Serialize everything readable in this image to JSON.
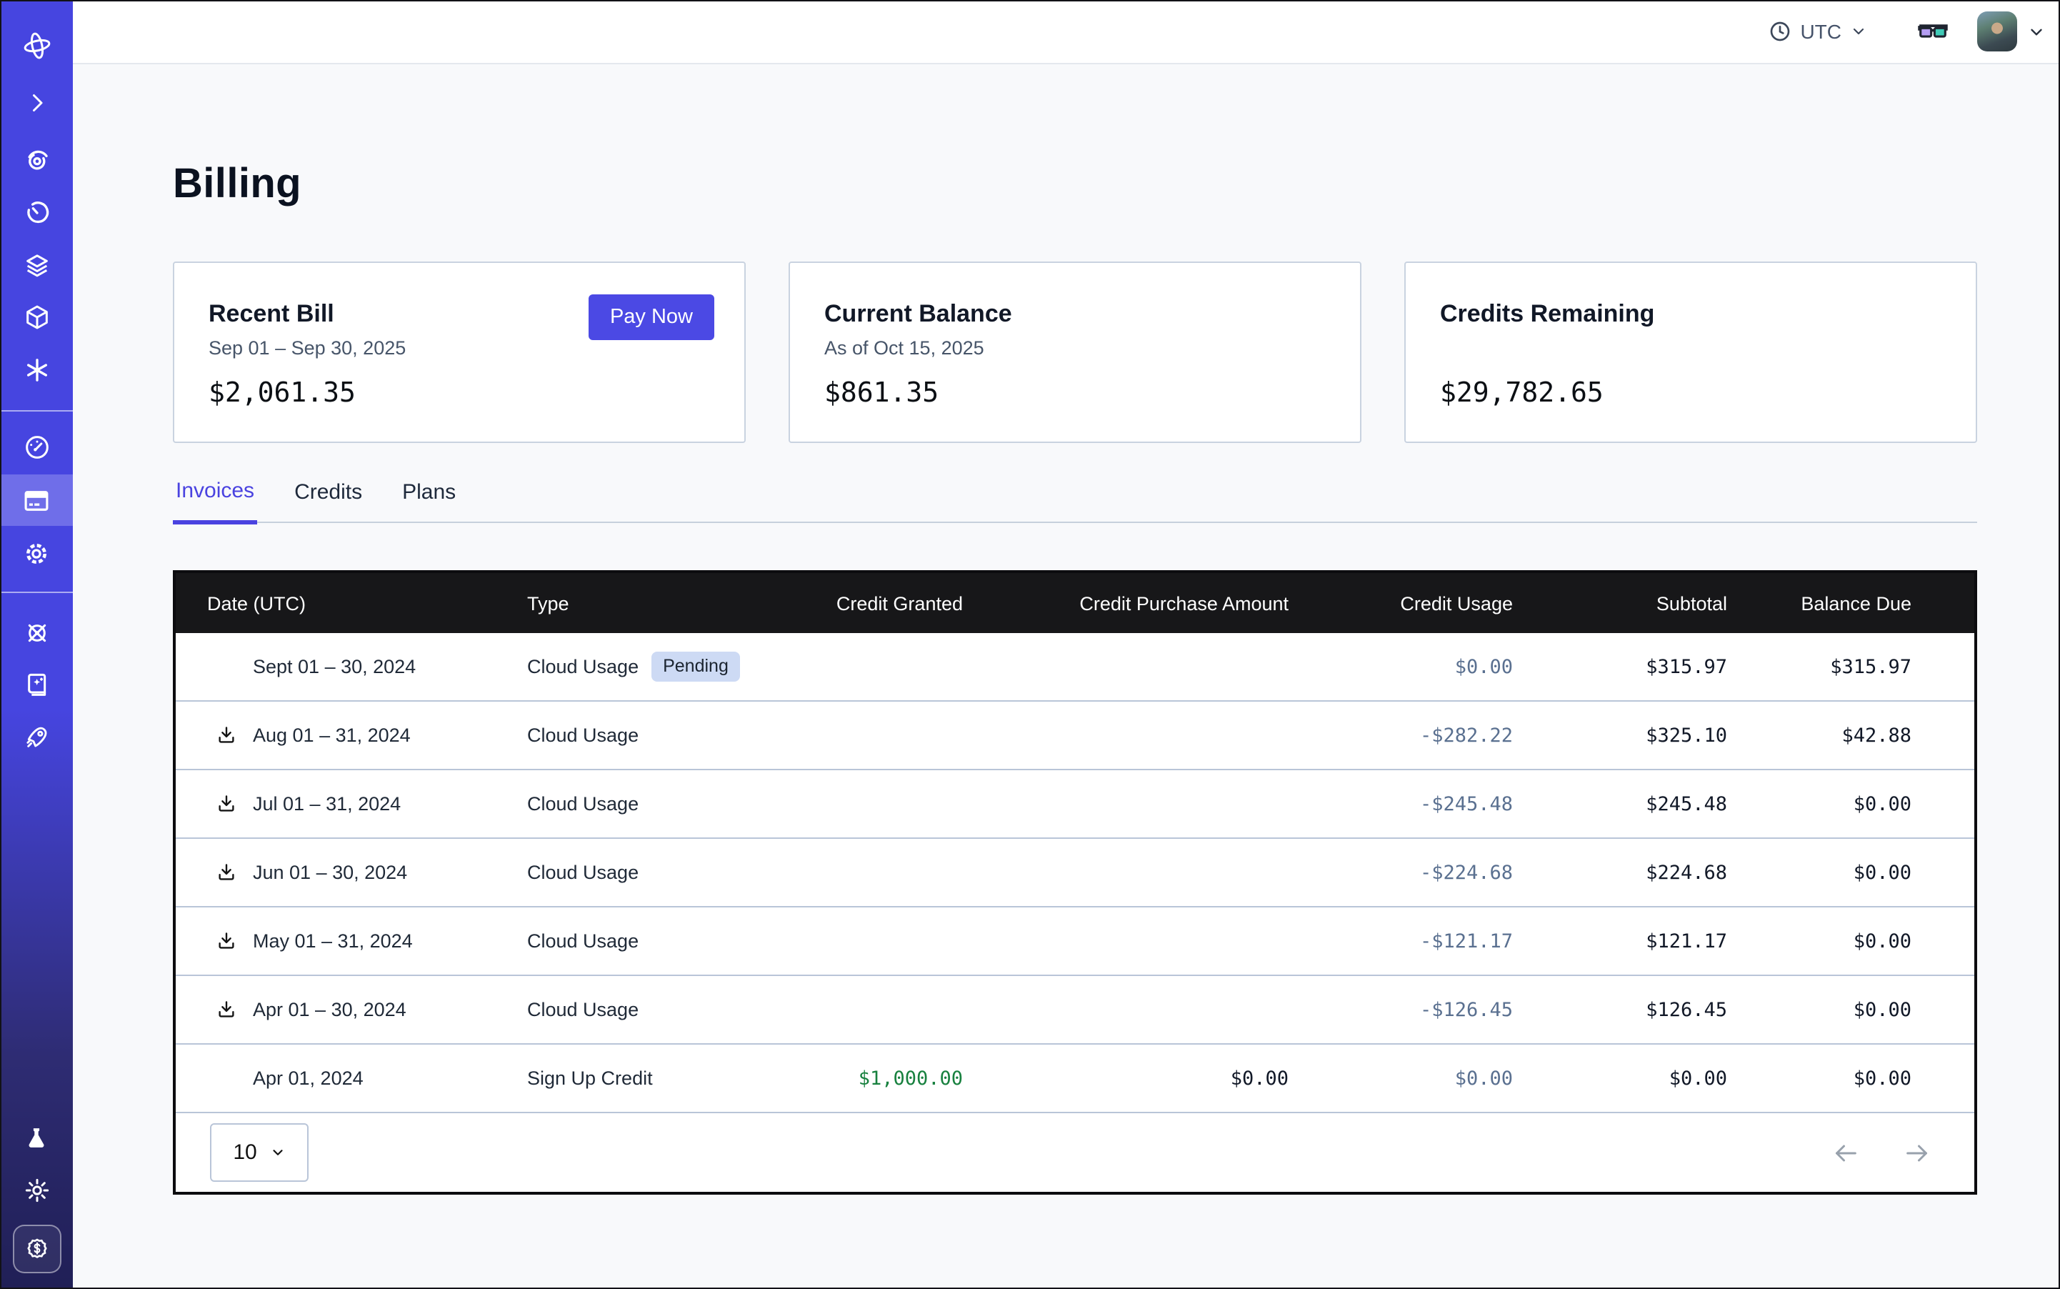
{
  "topbar": {
    "timezone_label": "UTC",
    "icons": [
      "clock-icon",
      "chevron-down-icon",
      "3d-glasses-icon",
      "avatar",
      "chevron-down-icon"
    ]
  },
  "page": {
    "title": "Billing"
  },
  "cards": [
    {
      "title": "Recent Bill",
      "subtitle": "Sep 01 – Sep 30, 2025",
      "amount": "$2,061.35",
      "action_label": "Pay Now"
    },
    {
      "title": "Current Balance",
      "subtitle": "As of Oct 15, 2025",
      "amount": "$861.35"
    },
    {
      "title": "Credits Remaining",
      "subtitle": "",
      "amount": "$29,782.65"
    }
  ],
  "tabs": [
    {
      "label": "Invoices",
      "active": true
    },
    {
      "label": "Credits",
      "active": false
    },
    {
      "label": "Plans",
      "active": false
    }
  ],
  "table": {
    "columns": [
      "Date (UTC)",
      "Type",
      "Credit Granted",
      "Credit Purchase Amount",
      "Credit Usage",
      "Subtotal",
      "Balance Due"
    ],
    "rows": [
      {
        "date": "Sept 01 – 30, 2024",
        "has_download": false,
        "type": "Cloud Usage",
        "badge": "Pending",
        "credit_granted": "",
        "credit_purchase": "",
        "credit_usage": "$0.00",
        "subtotal": "$315.97",
        "balance_due": "$315.97"
      },
      {
        "date": "Aug 01 – 31, 2024",
        "has_download": true,
        "type": "Cloud Usage",
        "badge": "",
        "credit_granted": "",
        "credit_purchase": "",
        "credit_usage": "-$282.22",
        "subtotal": "$325.10",
        "balance_due": "$42.88"
      },
      {
        "date": "Jul 01 – 31, 2024",
        "has_download": true,
        "type": "Cloud Usage",
        "badge": "",
        "credit_granted": "",
        "credit_purchase": "",
        "credit_usage": "-$245.48",
        "subtotal": "$245.48",
        "balance_due": "$0.00"
      },
      {
        "date": "Jun 01 – 30, 2024",
        "has_download": true,
        "type": "Cloud Usage",
        "badge": "",
        "credit_granted": "",
        "credit_purchase": "",
        "credit_usage": "-$224.68",
        "subtotal": "$224.68",
        "balance_due": "$0.00"
      },
      {
        "date": "May 01 – 31, 2024",
        "has_download": true,
        "type": "Cloud Usage",
        "badge": "",
        "credit_granted": "",
        "credit_purchase": "",
        "credit_usage": "-$121.17",
        "subtotal": "$121.17",
        "balance_due": "$0.00"
      },
      {
        "date": "Apr 01 – 30, 2024",
        "has_download": true,
        "type": "Cloud Usage",
        "badge": "",
        "credit_granted": "",
        "credit_purchase": "",
        "credit_usage": "-$126.45",
        "subtotal": "$126.45",
        "balance_due": "$0.00"
      },
      {
        "date": "Apr 01, 2024",
        "has_download": false,
        "type": "Sign Up Credit",
        "badge": "",
        "credit_granted": "$1,000.00",
        "credit_granted_green": true,
        "credit_purchase": "$0.00",
        "credit_usage": "$0.00",
        "subtotal": "$0.00",
        "balance_due": "$0.00"
      }
    ],
    "pagination": {
      "page_size": "10",
      "arrows": [
        "previous-page",
        "next-page"
      ]
    }
  },
  "sidebar": {
    "items": [
      "logo",
      "collapse-chevron-icon",
      "live-eye-icon",
      "history-clock-icon",
      "layers-icon",
      "cube-icon",
      "asterisk-icon",
      "dashboard-gauge-icon",
      "billing-icon",
      "settings-gear-icon",
      "helm-wheel-icon",
      "guide-book-icon",
      "rocket-icon",
      "flask-icon",
      "theme-sun-icon",
      "credits-dollar-badge-icon"
    ],
    "active_item": "billing-icon"
  },
  "colors": {
    "sidebar_indigo": "#4645e0",
    "sidebar_bottom": "#201f56",
    "active_item_bg": "#6f6ee9",
    "accent_indigo": "#4b49e4",
    "page_bg": "#f8f9fb",
    "table_header_bg": "#171719",
    "row_divider": "#b9c5d8",
    "credit_usage_text": "#5a7090",
    "credit_granted_green": "#18813f",
    "badge_bg": "#cddaf4",
    "muted_text": "#475569"
  }
}
